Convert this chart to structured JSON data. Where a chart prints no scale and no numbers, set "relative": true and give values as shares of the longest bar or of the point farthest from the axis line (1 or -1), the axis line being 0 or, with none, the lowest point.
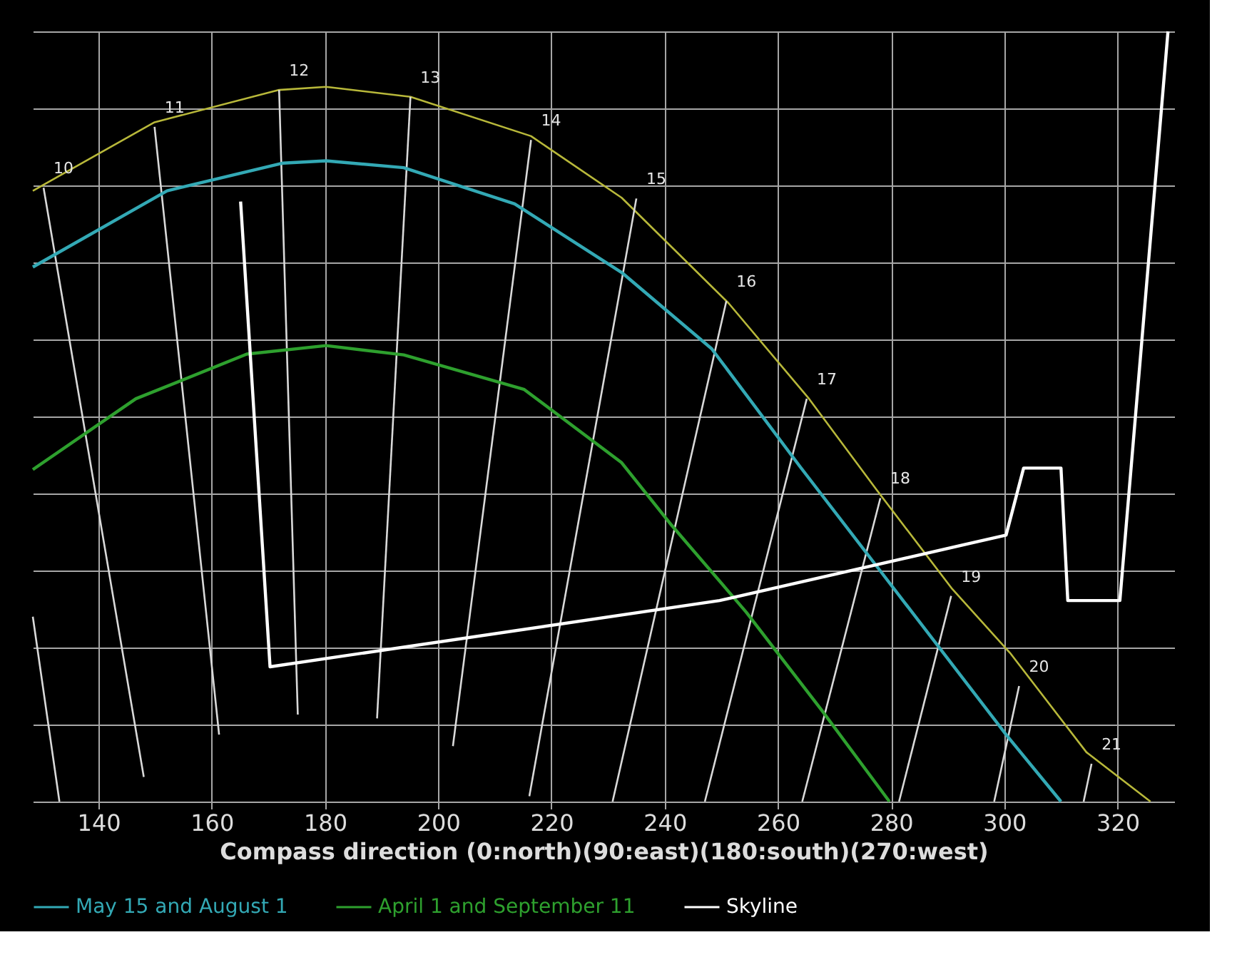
{
  "chart_data": {
    "type": "line",
    "xlabel": "Compass direction (0:north)(90:east)(180:south)(270:west)",
    "relative": true,
    "xlim": [
      128.4,
      330
    ],
    "xticks": [
      140,
      160,
      180,
      200,
      220,
      240,
      260,
      280,
      300,
      320
    ],
    "grid": true,
    "legend": "bottom",
    "marker": "none",
    "line_style": "solid",
    "series": [
      {
        "color": "#b8b83a",
        "x": [
          128.4,
          149.9,
          171.9,
          180.2,
          195.1,
          216.4,
          232.4,
          251.3,
          265.5,
          277.4,
          290.8,
          301.0,
          314.5,
          325.8
        ],
        "values": [
          0.793,
          0.882,
          0.924,
          0.928,
          0.915,
          0.864,
          0.784,
          0.647,
          0.523,
          0.405,
          0.276,
          0.193,
          0.064,
          0
        ]
      },
      {
        "name": "May 15 and August 1",
        "color": "#33a9b5",
        "x": [
          128.4,
          152.1,
          172.6,
          180.2,
          193.9,
          213.5,
          232.4,
          248.3,
          263.9,
          277.4,
          300.3,
          310.0
        ],
        "values": [
          0.694,
          0.793,
          0.829,
          0.832,
          0.823,
          0.776,
          0.687,
          0.588,
          0.435,
          0.306,
          0.087,
          0
        ]
      },
      {
        "name": "April 1 and September 11",
        "color": "#2ea02e",
        "x": [
          128.4,
          146.6,
          166.2,
          180.2,
          193.9,
          215.2,
          232.4,
          241.2,
          254.4,
          267.9,
          279.7
        ],
        "values": [
          0.431,
          0.523,
          0.581,
          0.592,
          0.58,
          0.535,
          0.44,
          0.359,
          0.246,
          0.117,
          0
        ]
      },
      {
        "name": "Skyline",
        "color": "#ffffff",
        "x": [
          165.1,
          170.3,
          249.7,
          300.3,
          303.4,
          310.0,
          311.2,
          320.4,
          328.9
        ],
        "values": [
          0.779,
          0.175,
          0.261,
          0.346,
          0.433,
          0.433,
          0.261,
          0.261,
          1.0
        ]
      },
      {
        "color": "#d9d9d9",
        "x": [
          128.4,
          133.1
        ],
        "values": [
          0.24,
          0
        ]
      },
      {
        "color": "#d9d9d9",
        "x": [
          130.3,
          148.0
        ],
        "values": [
          0.797,
          0.032
        ]
      },
      {
        "color": "#d9d9d9",
        "x": [
          149.9,
          161.3
        ],
        "values": [
          0.876,
          0.087
        ]
      },
      {
        "color": "#d9d9d9",
        "x": [
          171.9,
          175.2
        ],
        "values": [
          0.924,
          0.113
        ]
      },
      {
        "color": "#d9d9d9",
        "x": [
          195.1,
          189.2
        ],
        "values": [
          0.915,
          0.108
        ]
      },
      {
        "color": "#d9d9d9",
        "x": [
          216.4,
          202.6
        ],
        "values": [
          0.859,
          0.072
        ]
      },
      {
        "color": "#d9d9d9",
        "x": [
          235.0,
          216.1
        ],
        "values": [
          0.783,
          0.007
        ]
      },
      {
        "color": "#d9d9d9",
        "x": [
          250.9,
          230.8
        ],
        "values": [
          0.65,
          0
        ]
      },
      {
        "color": "#d9d9d9",
        "x": [
          265.1,
          247.1
        ],
        "values": [
          0.523,
          0
        ]
      },
      {
        "color": "#d9d9d9",
        "x": [
          278.1,
          264.3
        ],
        "values": [
          0.394,
          0
        ]
      },
      {
        "color": "#d9d9d9",
        "x": [
          290.6,
          281.4
        ],
        "values": [
          0.267,
          0
        ]
      },
      {
        "color": "#d9d9d9",
        "x": [
          302.6,
          298.2
        ],
        "values": [
          0.15,
          0
        ]
      },
      {
        "color": "#d9d9d9",
        "x": [
          315.4,
          314.0
        ],
        "values": [
          0.049,
          0
        ]
      }
    ],
    "annotations": [
      {
        "text": "10",
        "x": 130.3,
        "y": 0.797
      },
      {
        "text": "11",
        "x": 149.9,
        "y": 0.876
      },
      {
        "text": "12",
        "x": 171.9,
        "y": 0.924
      },
      {
        "text": "13",
        "x": 195.1,
        "y": 0.915
      },
      {
        "text": "14",
        "x": 216.4,
        "y": 0.859
      },
      {
        "text": "15",
        "x": 235.0,
        "y": 0.783
      },
      {
        "text": "16",
        "x": 250.9,
        "y": 0.65
      },
      {
        "text": "17",
        "x": 265.1,
        "y": 0.523
      },
      {
        "text": "18",
        "x": 278.1,
        "y": 0.394
      },
      {
        "text": "19",
        "x": 290.6,
        "y": 0.267
      },
      {
        "text": "20",
        "x": 302.6,
        "y": 0.15
      },
      {
        "text": "21",
        "x": 315.4,
        "y": 0.049
      }
    ]
  }
}
